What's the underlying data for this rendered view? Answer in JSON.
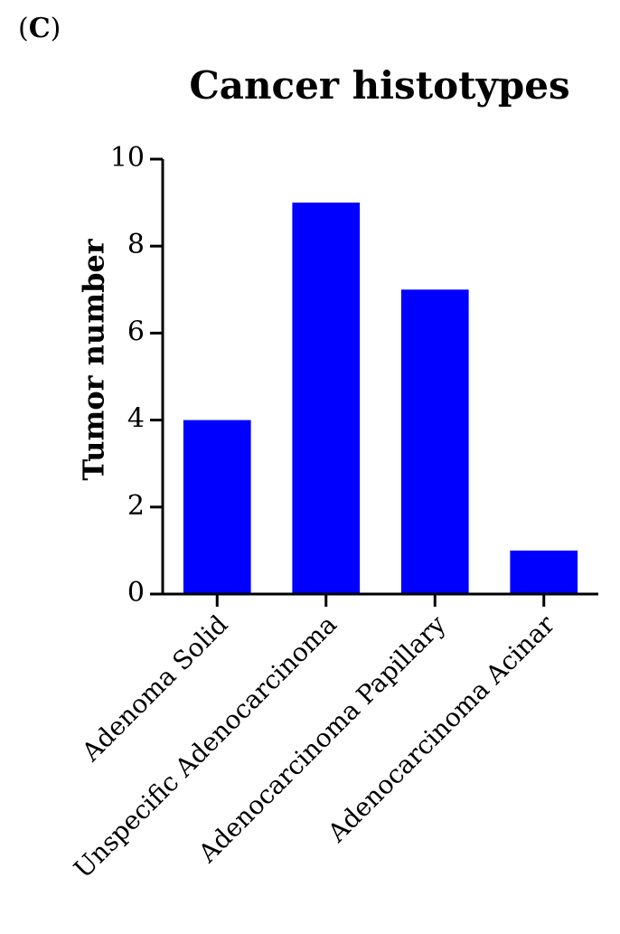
{
  "panel_label": {
    "open": "(",
    "letter": "C",
    "close": ")"
  },
  "chart_data": {
    "type": "bar",
    "title": "Cancer histotypes",
    "xlabel": "",
    "ylabel": "Tumor number",
    "categories": [
      "Adenoma Solid",
      "Unspecific Adenocarcinoma",
      "Adenocarcinoma Papillary",
      "Adenocarcinoma Acinar"
    ],
    "values": [
      4,
      9,
      7,
      1
    ],
    "ylim": [
      0,
      10
    ],
    "yticks": [
      0,
      2,
      4,
      6,
      8,
      10
    ],
    "bar_color": "#0000ff",
    "grid": false
  }
}
